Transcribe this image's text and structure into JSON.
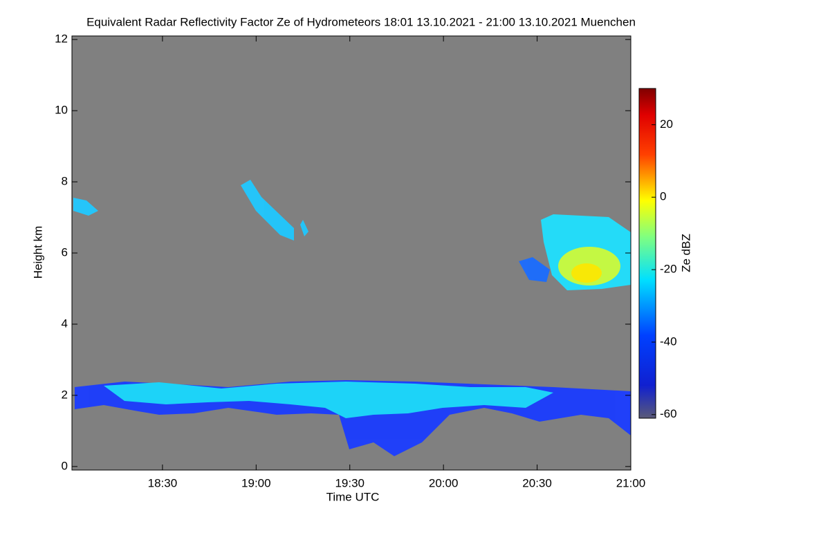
{
  "chart_data": {
    "type": "heatmap",
    "title": "Equivalent Radar Reflectivity Factor Ze of Hydrometeors   18:01 13.10.2021 - 21:00 13.10.2021 Muenchen",
    "x_label": "Time UTC",
    "y_label": "Height km",
    "xlim": [
      "18:01",
      "21:00"
    ],
    "xticks": [
      "18:30",
      "19:00",
      "19:30",
      "20:00",
      "20:30",
      "21:00"
    ],
    "ylim": [
      -0.1,
      12.1
    ],
    "yticks": [
      0,
      2,
      4,
      6,
      8,
      10,
      12
    ],
    "background": "#808080",
    "colorbar": {
      "label": "Ze dBZ",
      "lim": [
        -61,
        30
      ],
      "ticks": [
        -60,
        -40,
        -20,
        0,
        20
      ]
    }
  }
}
